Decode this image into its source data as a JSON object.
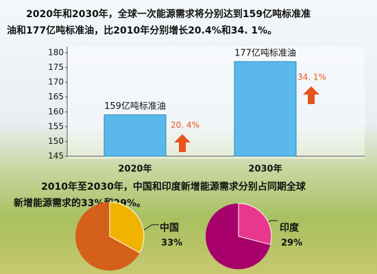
{
  "texts": {
    "paragraph1": [
      "2020年和2030年，全球一次能源需求将分别达到159亿吨标准准",
      "油和177亿吨标准油，比2010年分别增长20.4%和34. 1%。"
    ],
    "paragraph2": [
      "2010年至2030年，中国和印度新增能源需求分别占同期全球",
      "新增能源需求的33%和29%。"
    ]
  },
  "chart_data": [
    {
      "type": "bar",
      "categories": [
        "2020年",
        "2030年"
      ],
      "values": [
        159,
        177
      ],
      "value_labels": [
        "159亿吨标准油",
        "177亿吨标准油"
      ],
      "growth_labels": [
        "20. 4%",
        "34. 1%"
      ],
      "color": "#5bb8ea",
      "ylim": [
        145,
        180
      ],
      "yticks": [
        145,
        150,
        155,
        160,
        165,
        170,
        175,
        180
      ]
    },
    {
      "type": "pie",
      "name": "中国",
      "values": [
        33
      ],
      "value_labels": [
        "33%"
      ],
      "color": "#f0b400",
      "base_color": "#d4601a"
    },
    {
      "type": "pie",
      "name": "印度",
      "values": [
        29
      ],
      "value_labels": [
        "29%"
      ],
      "color": "#e8388e",
      "base_color": "#a8006a"
    }
  ]
}
